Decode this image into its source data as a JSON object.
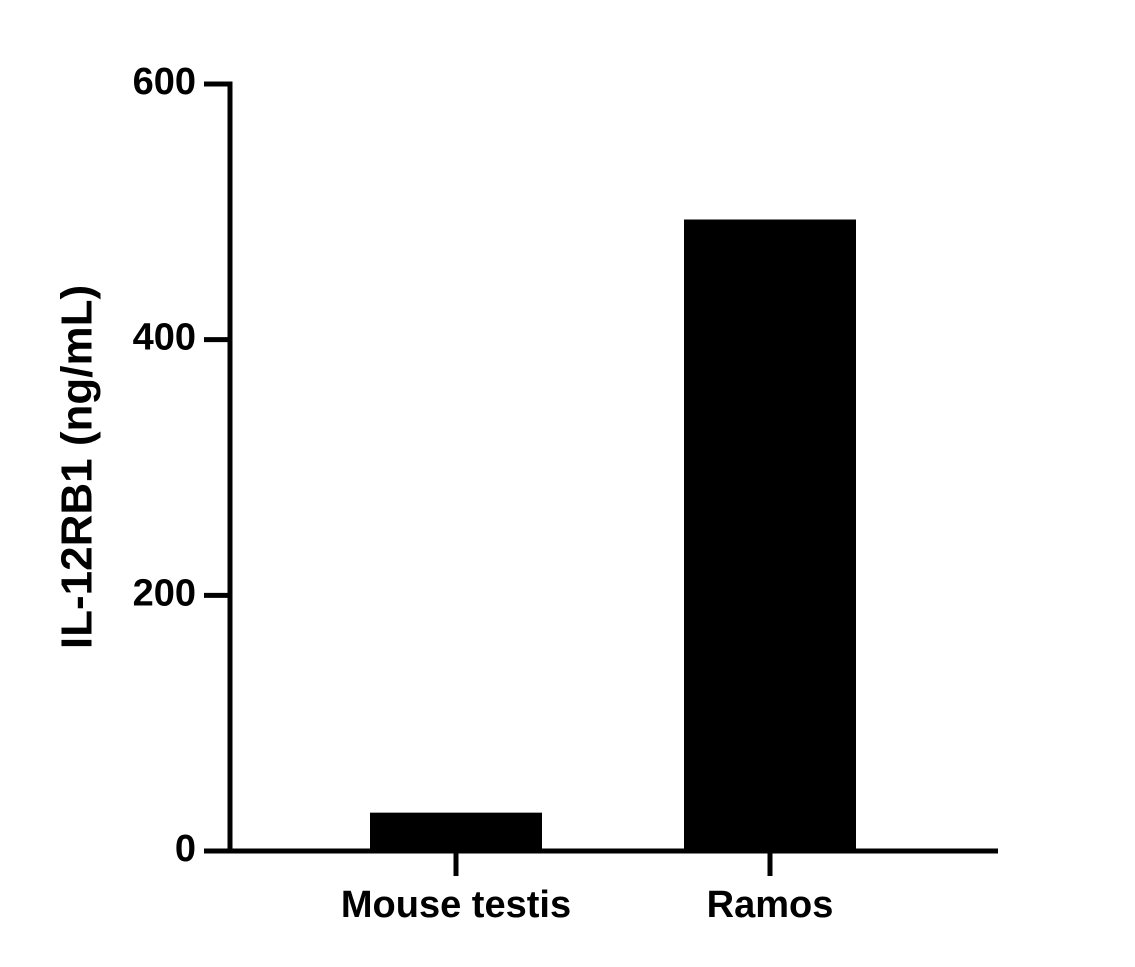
{
  "chart_data": {
    "type": "bar",
    "ylabel": "IL-12RB1 (ng/mL)",
    "categories": [
      "Mouse testis",
      "Ramos"
    ],
    "values": [
      30,
      494
    ],
    "color": "#000000",
    "ylim": [
      0,
      600
    ],
    "yticks": [
      0,
      200,
      400,
      600
    ],
    "grid": false
  }
}
